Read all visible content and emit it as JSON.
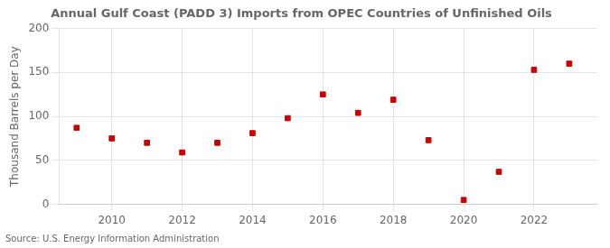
{
  "chart_data": {
    "type": "scatter",
    "title": "Annual Gulf Coast (PADD 3) Imports from OPEC Countries of Unfinished Oils",
    "ylabel": "Thousand Barrels per Day",
    "source": "Source: U.S. Energy Information Administration",
    "x": [
      2009,
      2010,
      2011,
      2012,
      2013,
      2014,
      2015,
      2016,
      2017,
      2018,
      2019,
      2020,
      2021,
      2022,
      2023
    ],
    "values": [
      87,
      75,
      70,
      59,
      70,
      81,
      98,
      125,
      104,
      119,
      73,
      5,
      37,
      153,
      160
    ],
    "color": "#cc0000",
    "marker": "square",
    "xlim": [
      2008.5,
      2023.8
    ],
    "xticks": [
      2010,
      2012,
      2014,
      2016,
      2018,
      2020,
      2022
    ],
    "ylim": [
      0,
      200
    ],
    "yticks": [
      0,
      50,
      100,
      150,
      200
    ],
    "grid": true
  }
}
